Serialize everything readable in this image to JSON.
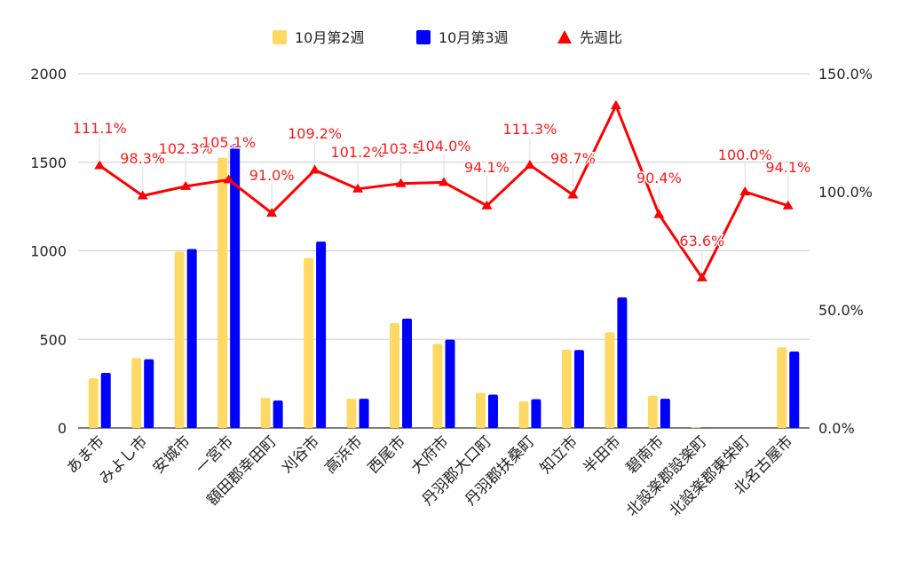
{
  "chart_data": {
    "type": "bar",
    "categories": [
      "あま市",
      "みよし市",
      "安城市",
      "一宮市",
      "額田郡幸田町",
      "刈谷市",
      "高浜市",
      "西尾市",
      "大府市",
      "丹羽郡大口町",
      "丹羽郡扶桑町",
      "知立市",
      "半田市",
      "碧南市",
      "北設楽郡設楽町",
      "北設楽郡東栄町",
      "北名古屋市"
    ],
    "series": [
      {
        "name": "10月第2週",
        "type": "bar",
        "axis": "left",
        "color": "#ffd966",
        "values": [
          280,
          395,
          995,
          1525,
          170,
          960,
          165,
          592,
          475,
          198,
          150,
          442,
          540,
          182,
          3,
          0,
          455
        ]
      },
      {
        "name": "10月第3週",
        "type": "bar",
        "axis": "left",
        "color": "#0000ff",
        "values": [
          311,
          388,
          1010,
          1602,
          155,
          1052,
          165,
          617,
          498,
          188,
          162,
          440,
          737,
          165,
          2,
          0,
          432
        ]
      },
      {
        "name": "先週比",
        "type": "line",
        "axis": "right",
        "color": "#ff0000",
        "values": [
          111.1,
          98.3,
          102.3,
          105.1,
          91.0,
          109.2,
          101.2,
          103.5,
          104.0,
          94.1,
          111.3,
          98.7,
          136.5,
          90.4,
          63.6,
          100.0,
          94.1
        ],
        "labels": [
          "111.1%",
          "98.3%",
          "102.3%",
          "105.1%",
          "91.0%",
          "109.2%",
          "101.2%",
          "103.5",
          "104.0%",
          "94.1%",
          "111.3%",
          "98.7%",
          "",
          "90.4%",
          "63.6%",
          "100.0%",
          "94.1%"
        ]
      }
    ],
    "y_left": {
      "ylim": [
        0,
        2000
      ],
      "ticks": [
        0,
        500,
        1000,
        1500,
        2000
      ],
      "tick_labels": [
        "0",
        "500",
        "1000",
        "1500",
        "2000"
      ]
    },
    "y_right": {
      "ylim": [
        0,
        150
      ],
      "ticks": [
        0,
        50,
        100,
        150
      ],
      "tick_labels": [
        "0.0%",
        "50.0%",
        "100.0%",
        "150.0%"
      ]
    },
    "title": "",
    "xlabel": "",
    "ylabel": "",
    "grid": true,
    "legend_position": "top-center",
    "legend": [
      {
        "label": "10月第2週",
        "color": "#ffd966",
        "marker": "square"
      },
      {
        "label": "10月第3週",
        "color": "#0000ff",
        "marker": "square"
      },
      {
        "label": "先週比",
        "color": "#ff0000",
        "marker": "triangle"
      }
    ]
  }
}
